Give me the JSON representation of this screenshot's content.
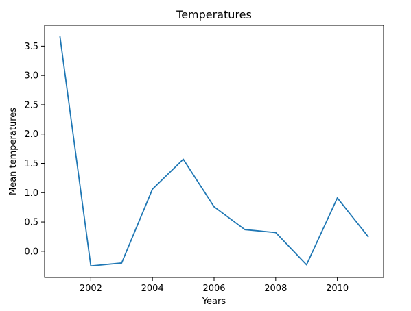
{
  "chart_data": {
    "type": "line",
    "title": "Temperatures",
    "xlabel": "Years",
    "ylabel": "Mean temperatures",
    "x": [
      2001,
      2002,
      2003,
      2004,
      2005,
      2006,
      2007,
      2008,
      2009,
      2010,
      2011
    ],
    "series": [
      {
        "values": [
          3.66,
          -0.25,
          -0.2,
          1.06,
          1.57,
          0.76,
          0.37,
          0.32,
          -0.23,
          0.91,
          0.25
        ],
        "color": "#1f77b4"
      }
    ],
    "xlim": [
      2000.5,
      2011.5
    ],
    "ylim": [
      -0.446,
      3.855
    ],
    "xticks": [
      2002,
      2004,
      2006,
      2008,
      2010
    ],
    "yticks": [
      0.0,
      0.5,
      1.0,
      1.5,
      2.0,
      2.5,
      3.0,
      3.5
    ],
    "ytick_labels": [
      "0.0",
      "0.5",
      "1.0",
      "1.5",
      "2.0",
      "2.5",
      "3.0",
      "3.5"
    ],
    "grid": false,
    "legend": "none"
  }
}
